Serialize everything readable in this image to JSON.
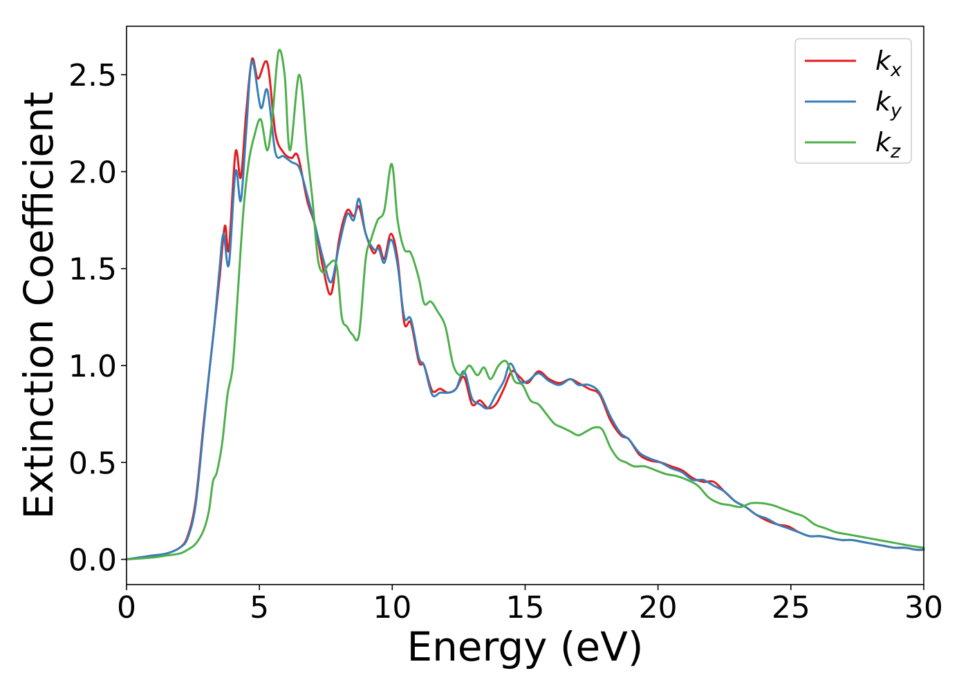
{
  "chart_data": {
    "type": "line",
    "title": "",
    "xlabel": "Energy (eV)",
    "ylabel": "Extinction Coefficient",
    "xlim": [
      0,
      30
    ],
    "ylim": [
      -0.13,
      2.75
    ],
    "xticks": [
      0,
      5,
      10,
      15,
      20,
      25,
      30
    ],
    "xtick_labels": [
      "0",
      "5",
      "10",
      "15",
      "20",
      "25",
      "30"
    ],
    "yticks": [
      0.0,
      0.5,
      1.0,
      1.5,
      2.0,
      2.5
    ],
    "ytick_labels": [
      "0.0",
      "0.5",
      "1.0",
      "1.5",
      "2.0",
      "2.5"
    ],
    "grid": false,
    "legend_position": "top-right",
    "series": [
      {
        "name": "k_x",
        "name_main": "k",
        "name_sub": "x",
        "color": "#e41a1c",
        "x": [
          0,
          1,
          1.5,
          2,
          2.3,
          2.6,
          2.9,
          3.1,
          3.3,
          3.5,
          3.7,
          3.85,
          4.1,
          4.3,
          4.5,
          4.72,
          4.95,
          5.3,
          5.6,
          5.9,
          6.2,
          6.45,
          6.8,
          7.1,
          7.4,
          7.7,
          8.0,
          8.3,
          8.55,
          8.75,
          9.0,
          9.3,
          9.5,
          9.7,
          9.95,
          10.2,
          10.45,
          10.7,
          11.0,
          11.2,
          11.5,
          11.8,
          12.1,
          12.4,
          12.7,
          13.0,
          13.3,
          13.6,
          13.9,
          14.2,
          14.5,
          14.8,
          15.1,
          15.5,
          15.9,
          16.3,
          16.7,
          17.0,
          17.4,
          17.8,
          18.2,
          18.6,
          18.9,
          19.3,
          19.7,
          20.1,
          20.5,
          20.9,
          21.3,
          21.7,
          22.1,
          22.5,
          22.9,
          23.3,
          23.7,
          24.1,
          24.5,
          24.9,
          25.3,
          25.7,
          26.1,
          26.5,
          26.9,
          27.3,
          27.7,
          28.1,
          28.5,
          28.9,
          29.3,
          29.7,
          30
        ],
        "y": [
          0.0,
          0.02,
          0.03,
          0.06,
          0.12,
          0.3,
          0.7,
          0.95,
          1.2,
          1.45,
          1.72,
          1.6,
          2.1,
          1.97,
          2.3,
          2.58,
          2.48,
          2.56,
          2.2,
          2.1,
          2.07,
          2.08,
          1.85,
          1.72,
          1.5,
          1.37,
          1.65,
          1.8,
          1.77,
          1.82,
          1.68,
          1.58,
          1.62,
          1.55,
          1.68,
          1.55,
          1.22,
          1.22,
          1.02,
          1.0,
          0.87,
          0.88,
          0.86,
          0.88,
          0.94,
          0.8,
          0.82,
          0.78,
          0.8,
          0.88,
          0.97,
          0.94,
          0.91,
          0.97,
          0.93,
          0.91,
          0.93,
          0.91,
          0.88,
          0.85,
          0.72,
          0.64,
          0.62,
          0.54,
          0.51,
          0.5,
          0.48,
          0.46,
          0.42,
          0.4,
          0.4,
          0.35,
          0.3,
          0.27,
          0.23,
          0.2,
          0.18,
          0.17,
          0.14,
          0.12,
          0.12,
          0.11,
          0.1,
          0.1,
          0.09,
          0.08,
          0.07,
          0.06,
          0.06,
          0.05,
          0.05
        ]
      },
      {
        "name": "k_y",
        "name_main": "k",
        "name_sub": "y",
        "color": "#377eb8",
        "x": [
          0,
          1,
          1.5,
          2,
          2.3,
          2.6,
          2.9,
          3.1,
          3.3,
          3.5,
          3.65,
          3.85,
          4.1,
          4.3,
          4.5,
          4.72,
          5.05,
          5.3,
          5.6,
          5.9,
          6.2,
          6.5,
          6.8,
          7.1,
          7.4,
          7.7,
          8.0,
          8.3,
          8.55,
          8.75,
          9.0,
          9.3,
          9.5,
          9.7,
          9.95,
          10.2,
          10.45,
          10.7,
          11.0,
          11.2,
          11.5,
          11.8,
          12.1,
          12.4,
          12.7,
          13.0,
          13.3,
          13.6,
          13.9,
          14.2,
          14.45,
          14.8,
          15.1,
          15.5,
          15.9,
          16.3,
          16.7,
          17.0,
          17.4,
          17.8,
          18.2,
          18.6,
          18.9,
          19.3,
          19.7,
          20.1,
          20.5,
          20.9,
          21.3,
          21.7,
          22.1,
          22.5,
          22.9,
          23.3,
          23.7,
          24.1,
          24.5,
          24.9,
          25.3,
          25.7,
          26.1,
          26.5,
          26.9,
          27.3,
          27.7,
          28.1,
          28.5,
          28.9,
          29.3,
          29.7,
          30
        ],
        "y": [
          0.0,
          0.02,
          0.03,
          0.06,
          0.11,
          0.28,
          0.68,
          0.95,
          1.2,
          1.5,
          1.68,
          1.52,
          2.0,
          1.85,
          2.2,
          2.57,
          2.33,
          2.42,
          2.1,
          2.08,
          2.05,
          2.02,
          1.88,
          1.72,
          1.55,
          1.43,
          1.62,
          1.78,
          1.75,
          1.86,
          1.68,
          1.6,
          1.6,
          1.53,
          1.65,
          1.52,
          1.25,
          1.24,
          1.04,
          1.0,
          0.85,
          0.86,
          0.86,
          0.88,
          0.97,
          0.83,
          0.8,
          0.78,
          0.85,
          0.92,
          1.01,
          0.92,
          0.92,
          0.96,
          0.92,
          0.9,
          0.93,
          0.9,
          0.9,
          0.86,
          0.74,
          0.65,
          0.62,
          0.55,
          0.52,
          0.5,
          0.47,
          0.45,
          0.41,
          0.41,
          0.38,
          0.35,
          0.3,
          0.27,
          0.23,
          0.21,
          0.18,
          0.16,
          0.14,
          0.12,
          0.12,
          0.11,
          0.1,
          0.1,
          0.09,
          0.08,
          0.07,
          0.06,
          0.06,
          0.05,
          0.05
        ]
      },
      {
        "name": "k_z",
        "name_main": "k",
        "name_sub": "z",
        "color": "#4daf4a",
        "x": [
          0,
          1,
          1.5,
          2,
          2.3,
          2.6,
          2.9,
          3.1,
          3.25,
          3.4,
          3.6,
          3.8,
          4.0,
          4.2,
          4.4,
          4.6,
          4.8,
          5.05,
          5.3,
          5.5,
          5.72,
          5.95,
          6.15,
          6.5,
          6.8,
          7.0,
          7.2,
          7.4,
          7.6,
          7.9,
          8.1,
          8.3,
          8.5,
          8.75,
          9.0,
          9.2,
          9.45,
          9.7,
          9.98,
          10.2,
          10.45,
          10.7,
          11.0,
          11.2,
          11.45,
          11.7,
          12.0,
          12.3,
          12.6,
          12.9,
          13.2,
          13.45,
          13.7,
          14.0,
          14.3,
          14.6,
          14.9,
          15.2,
          15.5,
          15.8,
          16.1,
          16.4,
          16.7,
          17.0,
          17.3,
          17.6,
          17.9,
          18.2,
          18.5,
          18.8,
          19.1,
          19.5,
          19.9,
          20.3,
          20.7,
          21.1,
          21.5,
          21.9,
          22.3,
          22.7,
          23.1,
          23.5,
          23.9,
          24.3,
          24.7,
          25.1,
          25.5,
          25.9,
          26.3,
          26.7,
          27.1,
          27.5,
          27.9,
          28.3,
          28.7,
          29.1,
          29.5,
          30
        ],
        "y": [
          0.0,
          0.01,
          0.02,
          0.03,
          0.05,
          0.08,
          0.15,
          0.25,
          0.4,
          0.45,
          0.6,
          0.85,
          1.0,
          1.4,
          1.8,
          2.05,
          2.18,
          2.27,
          2.11,
          2.3,
          2.62,
          2.5,
          2.11,
          2.5,
          2.1,
          1.85,
          1.55,
          1.48,
          1.52,
          1.52,
          1.25,
          1.2,
          1.16,
          1.16,
          1.55,
          1.65,
          1.75,
          1.8,
          2.04,
          1.75,
          1.6,
          1.58,
          1.45,
          1.32,
          1.33,
          1.28,
          1.2,
          1.0,
          0.95,
          1.0,
          0.95,
          0.99,
          0.93,
          1.0,
          1.02,
          0.92,
          0.9,
          0.82,
          0.8,
          0.75,
          0.7,
          0.68,
          0.66,
          0.64,
          0.66,
          0.68,
          0.67,
          0.58,
          0.52,
          0.5,
          0.48,
          0.48,
          0.46,
          0.44,
          0.43,
          0.41,
          0.38,
          0.32,
          0.29,
          0.28,
          0.27,
          0.29,
          0.29,
          0.28,
          0.26,
          0.24,
          0.22,
          0.18,
          0.16,
          0.14,
          0.13,
          0.12,
          0.11,
          0.1,
          0.09,
          0.08,
          0.07,
          0.06
        ]
      }
    ]
  }
}
